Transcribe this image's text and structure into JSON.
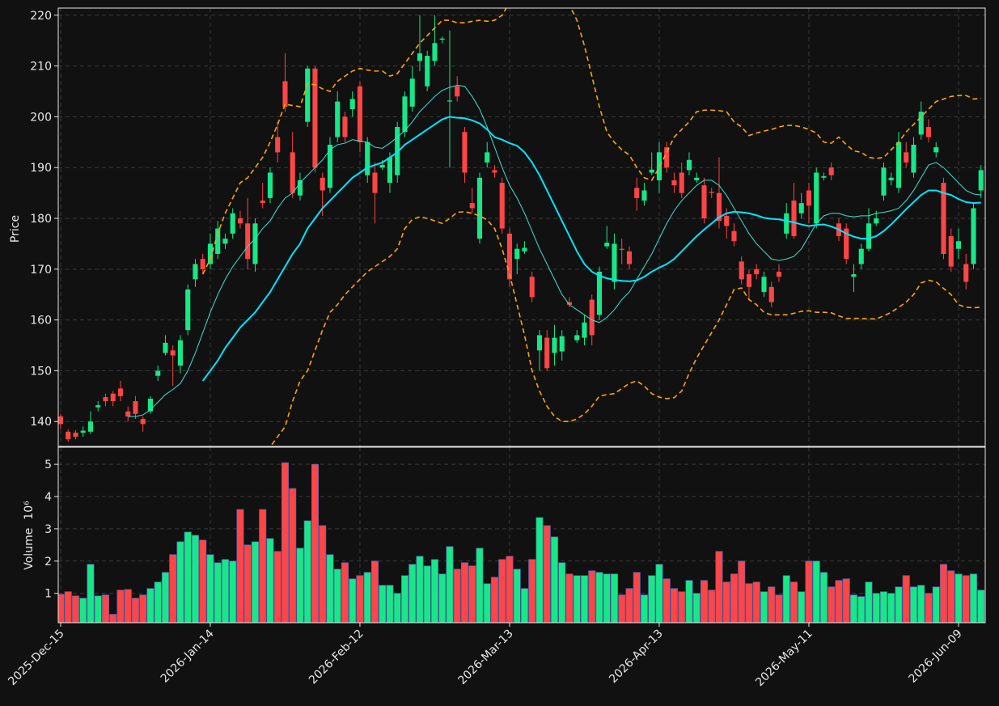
{
  "chart_data": {
    "type": "candlestick",
    "ylabel": "Price",
    "volume_ylabel": "Volume",
    "volume_scale": "10⁶",
    "grid": true,
    "up_color": "#16e888",
    "down_color": "#ff4545",
    "volume_edge_color": "#5a64b4",
    "x": [
      0,
      1,
      2,
      3,
      4,
      5,
      6,
      7,
      8,
      9,
      10,
      11,
      12,
      13,
      14,
      15,
      16,
      17,
      18,
      19,
      20,
      21,
      22,
      23,
      24,
      25,
      26,
      27,
      28,
      29,
      30,
      31,
      32,
      33,
      34,
      35,
      36,
      37,
      38,
      39,
      40,
      41,
      42,
      43,
      44,
      45,
      46,
      47,
      48,
      49,
      50,
      51,
      52,
      53,
      54,
      55,
      56,
      57,
      58,
      59,
      60,
      61,
      62,
      63,
      64,
      65,
      66,
      67,
      68,
      69,
      70,
      71,
      72,
      73,
      74,
      75,
      76,
      77,
      78,
      79,
      80,
      81,
      82,
      83,
      84,
      85,
      86,
      87,
      88,
      89,
      90,
      91,
      92,
      93,
      94,
      95,
      96,
      97,
      98,
      99,
      100,
      101,
      102,
      103,
      104,
      105,
      106,
      107,
      108,
      109,
      110,
      111,
      112,
      113,
      114,
      115,
      116,
      117,
      118,
      119,
      120,
      121,
      122,
      123
    ],
    "open": [
      141,
      138,
      137.8,
      137.8,
      138,
      142.8,
      144.8,
      145.5,
      146.5,
      142,
      144,
      140.5,
      142,
      149,
      153.5,
      154,
      151,
      158,
      168,
      172,
      171,
      173,
      175,
      177,
      180,
      179,
      171,
      183.5,
      184,
      196,
      207,
      193,
      184.5,
      199,
      209.5,
      188,
      186,
      196,
      200,
      201.5,
      206,
      188.5,
      189,
      190,
      187,
      188.5,
      197,
      202,
      211,
      206,
      211,
      215.2,
      203,
      206,
      197,
      183,
      176,
      191,
      189.5,
      187,
      177,
      172,
      173.5,
      168.5,
      154,
      156.5,
      153.5,
      153.8,
      163.5,
      156,
      156.5,
      164,
      161,
      174.5,
      167.5,
      174,
      173.5,
      186,
      183.5,
      189,
      187.5,
      194,
      187.5,
      189,
      189.5,
      187.5,
      186.5,
      185.2,
      185,
      180.5,
      177.5,
      171.5,
      169,
      170,
      165.5,
      166.5,
      169.5,
      177,
      183.5,
      181,
      185.5,
      179,
      188,
      190,
      179,
      178,
      168.5,
      171,
      174,
      179,
      184.5,
      187.5,
      186,
      193,
      189,
      196.5,
      198,
      193,
      187,
      176.5,
      174,
      171,
      171,
      185.5
    ],
    "high": [
      141.5,
      138.5,
      138.3,
      139,
      142,
      144,
      145.5,
      146,
      148,
      143,
      145,
      141,
      145,
      151,
      157,
      155,
      157,
      167,
      172,
      173,
      177,
      179.5,
      177,
      182,
      181.5,
      184,
      180,
      187,
      190,
      199,
      212.5,
      197,
      189,
      210,
      210,
      189,
      196,
      205,
      201,
      205,
      207,
      196,
      191,
      191.5,
      193,
      199,
      205,
      210,
      220,
      213,
      220,
      215.8,
      217,
      208,
      198,
      186,
      189,
      195,
      190.5,
      188,
      178,
      175,
      175.5,
      169.5,
      158,
      158,
      159,
      158,
      164.5,
      158,
      161,
      165,
      170.5,
      178.5,
      177,
      176,
      174.5,
      188,
      187,
      193,
      195,
      195,
      189,
      191,
      193,
      189,
      188,
      186,
      192,
      182,
      179,
      172.5,
      170,
      171,
      169.5,
      167.5,
      171,
      183,
      187,
      185,
      187,
      190,
      189,
      191,
      180,
      179,
      171,
      175,
      182,
      181.5,
      191,
      189,
      197,
      195,
      196,
      203,
      199.5,
      195,
      188,
      178,
      178,
      173,
      183,
      190.5
    ],
    "low": [
      138.5,
      136,
      136.5,
      137,
      137.5,
      142,
      143,
      143,
      144,
      140,
      140.5,
      138,
      141.5,
      148,
      153,
      147,
      149.5,
      157,
      166.5,
      169,
      170,
      172,
      174,
      176,
      178,
      170,
      169.5,
      182,
      183,
      191,
      201,
      184,
      183.5,
      198,
      189,
      180.5,
      185,
      195,
      195,
      200,
      193,
      187,
      179,
      189.5,
      185,
      187,
      196,
      201,
      209,
      205,
      210,
      214.5,
      190,
      203,
      187,
      181,
      175,
      190,
      188,
      177,
      166.5,
      169,
      173,
      163.5,
      150,
      150,
      151,
      152,
      162.5,
      155.5,
      155,
      155,
      160,
      174,
      166,
      171,
      170,
      181.5,
      182.5,
      188.5,
      185,
      189,
      185,
      184,
      188.5,
      187,
      179,
      184,
      178,
      176,
      174.5,
      167,
      164,
      168,
      164.5,
      162.5,
      167.5,
      176,
      176,
      180,
      179,
      178,
      187.5,
      187.5,
      175.5,
      171,
      165.5,
      170,
      173.5,
      178.5,
      183.5,
      186.5,
      185,
      190,
      188,
      195.5,
      195,
      192,
      172,
      169.5,
      172,
      166,
      170,
      184
    ],
    "close": [
      139.5,
      136.5,
      137,
      138.2,
      140,
      143.2,
      144,
      144,
      145,
      141,
      141.5,
      139.5,
      144.5,
      150,
      155.5,
      153,
      156,
      166,
      171,
      170,
      175,
      178,
      176,
      181,
      179,
      172,
      179,
      183,
      189,
      193,
      202,
      185,
      187.5,
      209.5,
      190,
      185.5,
      194.5,
      203,
      196,
      203.5,
      195,
      195,
      185,
      190.5,
      192,
      198,
      204,
      207.5,
      212.5,
      212,
      214.5,
      215.4,
      203.2,
      204,
      189,
      182,
      188,
      193,
      189,
      178,
      168,
      174,
      174.2,
      164.5,
      157,
      150.5,
      156.5,
      156.8,
      163,
      157,
      159.5,
      157,
      169.5,
      175.2,
      175,
      173.8,
      171,
      184,
      185.5,
      189.6,
      193,
      190,
      186.5,
      185,
      191.5,
      188,
      180,
      185,
      179.5,
      178.5,
      175.5,
      168,
      166.5,
      169,
      168.5,
      163.5,
      168.5,
      181,
      176.5,
      183,
      182.5,
      189,
      188.3,
      188.5,
      176.5,
      172,
      169,
      174,
      179,
      180,
      190,
      188,
      195,
      191,
      194.5,
      201,
      196,
      194,
      173,
      170.5,
      175.5,
      167.5,
      182,
      189.5
    ],
    "volume": [
      0.97,
      1.05,
      0.92,
      0.85,
      1.9,
      0.92,
      0.95,
      0.35,
      1.1,
      1.12,
      0.85,
      0.95,
      1.15,
      1.35,
      1.65,
      2.2,
      2.6,
      2.9,
      2.8,
      2.65,
      2.2,
      1.95,
      2.05,
      2.0,
      3.6,
      2.5,
      2.6,
      3.6,
      2.7,
      2.3,
      5.05,
      4.25,
      2.4,
      3.25,
      5.0,
      3.1,
      2.2,
      1.75,
      1.95,
      1.45,
      1.55,
      1.65,
      2.0,
      1.25,
      1.25,
      1.0,
      1.55,
      1.9,
      2.15,
      1.85,
      2.05,
      1.6,
      2.45,
      1.75,
      1.95,
      1.85,
      2.4,
      1.3,
      1.5,
      2.05,
      2.15,
      1.75,
      1.15,
      2.05,
      3.35,
      3.1,
      2.75,
      1.95,
      1.6,
      1.55,
      1.55,
      1.7,
      1.65,
      1.6,
      1.6,
      0.95,
      1.15,
      1.65,
      0.95,
      1.55,
      1.9,
      1.45,
      1.15,
      1.05,
      1.4,
      1.0,
      1.4,
      1.1,
      2.3,
      1.35,
      1.6,
      2.0,
      1.3,
      1.35,
      1.05,
      1.2,
      0.95,
      1.55,
      1.35,
      1.05,
      2.0,
      2.0,
      1.65,
      1.2,
      1.4,
      1.45,
      0.95,
      0.9,
      1.35,
      1.0,
      1.05,
      1.0,
      1.2,
      1.55,
      1.2,
      1.25,
      1.0,
      1.2,
      1.9,
      1.7,
      1.6,
      1.55,
      1.6,
      1.1
    ],
    "overlays": [
      {
        "color": "#40e0d0",
        "width": 1,
        "dashed": false,
        "values": [
          null,
          null,
          null,
          null,
          null,
          null,
          null,
          null,
          null,
          141,
          141,
          141.3,
          142.3,
          143.8,
          145.3,
          146.3,
          147.5,
          150,
          153.5,
          157.5,
          161.5,
          165,
          168,
          170.5,
          172.5,
          174.5,
          176,
          178,
          179.5,
          182,
          184,
          185,
          187,
          188.5,
          190,
          191.5,
          193.5,
          194.5,
          194.8,
          195.5,
          195.2,
          195,
          194,
          193.8,
          194.8,
          196,
          197.3,
          199,
          201,
          202.5,
          204,
          205.2,
          205.8,
          206.2,
          206,
          204,
          201.5,
          198,
          194,
          190,
          186.5,
          184,
          181,
          177.5,
          174,
          171,
          168,
          165,
          163,
          162,
          161,
          160,
          159.5,
          160.5,
          162,
          164,
          165.5,
          168,
          170.5,
          173,
          176,
          179,
          181.5,
          183.5,
          185,
          186.5,
          187.5,
          187.5,
          186.5,
          184.5,
          182,
          179.5,
          177,
          175,
          173.5,
          172,
          171.7,
          172,
          172.5,
          174,
          176.5,
          179,
          180.5,
          181,
          181,
          180.5,
          180.3,
          180.5,
          180.5,
          181,
          181.2,
          181.5,
          182,
          183.5,
          185.5,
          188,
          190.5,
          191,
          190,
          188.5,
          187,
          185.5,
          184.8,
          184.6
        ]
      },
      {
        "color": "#00e5ff",
        "width": 2,
        "dashed": false,
        "values": [
          null,
          null,
          null,
          null,
          null,
          null,
          null,
          null,
          null,
          null,
          null,
          null,
          null,
          null,
          null,
          null,
          null,
          null,
          null,
          148,
          150,
          152,
          154.5,
          156.5,
          158.5,
          160,
          161.5,
          163.5,
          165.5,
          168,
          170.5,
          173,
          175,
          178,
          180,
          182,
          183.5,
          185,
          186.5,
          188,
          189,
          190,
          190.5,
          191,
          192,
          193,
          194.5,
          195.5,
          196.5,
          197.5,
          198.5,
          199.5,
          200,
          199.8,
          199.7,
          199.3,
          198.7,
          197.5,
          196,
          195.5,
          194.8,
          194.3,
          193,
          191,
          188.5,
          185.5,
          182.5,
          179.5,
          176.5,
          173.5,
          171,
          169.5,
          168.7,
          168.2,
          167.9,
          167.7,
          167.6,
          167.8,
          168.5,
          169.5,
          170.3,
          171,
          172,
          173.5,
          175,
          176.5,
          177.8,
          179,
          180.2,
          181,
          181.3,
          181.2,
          181,
          180.6,
          180.1,
          179.9,
          179.8,
          179.5,
          179.2,
          178.8,
          178.5,
          178.7,
          178.8,
          178.4,
          177.8,
          177,
          176.4,
          176,
          176,
          176.5,
          177.5,
          178.8,
          180.3,
          181.8,
          183.2,
          184.6,
          185.5,
          185.5,
          185,
          184.6,
          183.8,
          183.2,
          183,
          183.1
        ]
      },
      {
        "color": "#ffa500",
        "width": 1.6,
        "dashed": true,
        "values": [
          null,
          null,
          null,
          null,
          null,
          null,
          null,
          null,
          null,
          null,
          null,
          null,
          null,
          null,
          null,
          null,
          null,
          null,
          null,
          169,
          172,
          177,
          181,
          184,
          187,
          188,
          190,
          192,
          195,
          198.5,
          202.5,
          202.2,
          202,
          206.5,
          206.3,
          205.5,
          205,
          207,
          208,
          209,
          209.5,
          209.2,
          209,
          209,
          208,
          208.5,
          210.5,
          212.5,
          214.5,
          216,
          217.5,
          219,
          219,
          218.5,
          218.5,
          218.8,
          219,
          218.8,
          219,
          220,
          222.5,
          225,
          228,
          231,
          233,
          233,
          231,
          227,
          222,
          219,
          214,
          208,
          202,
          197,
          195,
          193.5,
          192.5,
          190,
          188,
          187.5,
          190,
          193,
          196,
          197.5,
          199,
          201,
          201.3,
          201.3,
          201.2,
          201,
          199,
          198,
          196.3,
          196.8,
          197.2,
          197.5,
          198,
          198.3,
          198.3,
          198,
          197.5,
          196.8,
          195,
          194.8,
          196,
          194.5,
          193.3,
          193,
          192,
          191.8,
          192,
          193.5,
          195,
          197,
          198.5,
          200,
          201.5,
          203,
          203.5,
          204,
          204.2,
          204.2,
          203.5,
          203.6
        ]
      },
      {
        "color": "#ffa500",
        "width": 1.6,
        "dashed": true,
        "values": [
          null,
          null,
          null,
          null,
          null,
          null,
          null,
          null,
          null,
          null,
          null,
          null,
          null,
          null,
          null,
          null,
          null,
          null,
          null,
          127,
          126,
          125,
          125,
          126,
          127,
          129,
          131,
          133,
          135,
          137,
          139,
          144,
          148,
          150,
          154,
          158,
          161.5,
          163,
          165,
          166.5,
          168,
          169.5,
          170.5,
          171.5,
          172.5,
          174,
          178,
          179.8,
          180.3,
          180,
          179.5,
          179,
          180,
          181.2,
          181.3,
          181,
          180.5,
          179.7,
          178,
          174,
          169,
          163,
          157,
          150,
          146,
          143,
          141,
          140,
          140,
          140.5,
          141.5,
          143,
          145,
          145.3,
          145.5,
          146.5,
          147.5,
          148,
          147,
          145.5,
          144.8,
          144.5,
          144.7,
          146,
          149.5,
          152.5,
          155,
          157.5,
          160,
          163,
          166,
          166.3,
          164,
          163,
          161.5,
          161,
          161,
          161,
          161.3,
          161.7,
          161.8,
          161.5,
          161.5,
          161.4,
          160.8,
          160.3,
          160.3,
          160.3,
          160.2,
          160.2,
          160.8,
          161.5,
          162.5,
          163.5,
          165,
          167.3,
          167.8,
          167.5,
          166.2,
          165,
          163,
          162.5,
          162.4,
          162.5
        ]
      }
    ],
    "xlim": [
      -0.32,
      123.57
    ],
    "xticks": [
      {
        "value": 0,
        "label": "2025-Dec-15"
      },
      {
        "value": 20,
        "label": "2026-Jan-14"
      },
      {
        "value": 40,
        "label": "2026-Feb-12"
      },
      {
        "value": 60,
        "label": "2026-Mar-13"
      },
      {
        "value": 80,
        "label": "2026-Apr-13"
      },
      {
        "value": 100,
        "label": "2026-May-11"
      },
      {
        "value": 120,
        "label": "2026-Jun-09"
      }
    ],
    "ylim": [
      135.1,
      221.4
    ],
    "yticks": [
      140,
      150,
      160,
      170,
      180,
      190,
      200,
      210,
      220
    ],
    "volume_ylim": [
      0.09,
      5.53
    ],
    "volume_yticks": [
      1,
      2,
      3,
      4,
      5
    ]
  }
}
